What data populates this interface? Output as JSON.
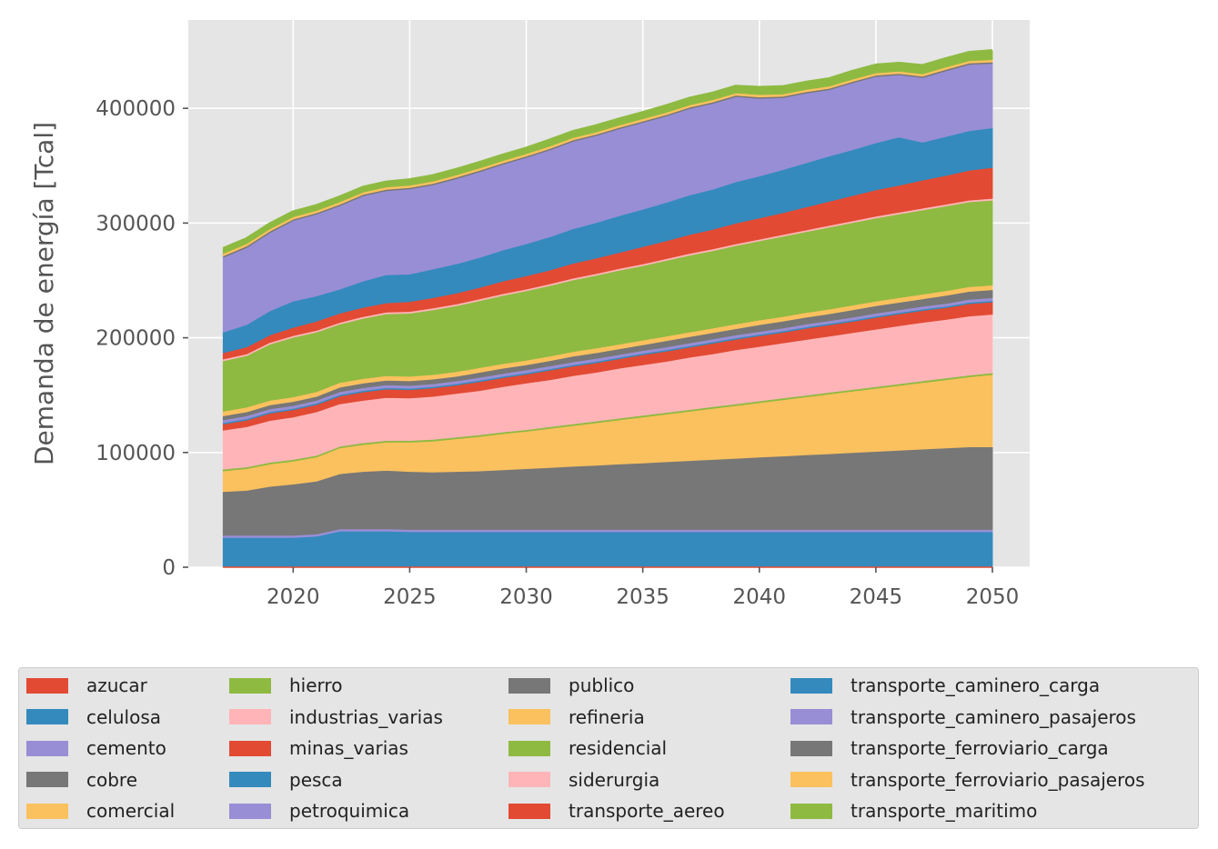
{
  "chart_data": {
    "type": "area",
    "stacked": true,
    "title": "",
    "xlabel": "",
    "ylabel": "Demanda de energía [Tcal]",
    "xlim": [
      2015.5,
      2051.6
    ],
    "ylim": [
      0,
      477000
    ],
    "xticks": [
      2020,
      2025,
      2030,
      2035,
      2040,
      2045,
      2050
    ],
    "yticks": [
      0,
      100000,
      200000,
      300000,
      400000
    ],
    "grid": true,
    "legend_position": "bottom",
    "x": [
      2017,
      2018,
      2019,
      2020,
      2021,
      2022,
      2023,
      2024,
      2025,
      2026,
      2027,
      2028,
      2029,
      2030,
      2031,
      2032,
      2033,
      2034,
      2035,
      2036,
      2037,
      2038,
      2039,
      2040,
      2041,
      2042,
      2043,
      2044,
      2045,
      2046,
      2047,
      2048,
      2049,
      2050
    ],
    "series": [
      {
        "name": "azucar",
        "color": "#E24A33",
        "values": [
          1000,
          1000,
          1000,
          1000,
          1000,
          1000,
          1000,
          1000,
          1000,
          1000,
          1000,
          1000,
          1000,
          1000,
          1000,
          1000,
          1000,
          1000,
          1000,
          1000,
          1000,
          1000,
          1000,
          1000,
          1000,
          1000,
          1000,
          1000,
          1000,
          1000,
          1000,
          1000,
          1000,
          1000
        ]
      },
      {
        "name": "celulosa",
        "color": "#348ABD",
        "values": [
          25000,
          25000,
          25000,
          25000,
          26000,
          30500,
          30500,
          30500,
          30000,
          30000,
          30000,
          30000,
          30000,
          30000,
          30000,
          30000,
          30000,
          30000,
          30000,
          30000,
          30000,
          30000,
          30000,
          30000,
          30000,
          30000,
          30000,
          30000,
          30000,
          30000,
          30000,
          30000,
          30000,
          30000
        ]
      },
      {
        "name": "cemento",
        "color": "#988ED5",
        "values": [
          2000,
          2000,
          2000,
          2000,
          2000,
          2000,
          2000,
          2000,
          2000,
          2000,
          2000,
          2000,
          2000,
          2000,
          2000,
          2000,
          2000,
          2000,
          2000,
          2000,
          2000,
          2000,
          2000,
          2000,
          2000,
          2000,
          2000,
          2000,
          2000,
          2000,
          2000,
          2000,
          2000,
          2000
        ]
      },
      {
        "name": "cobre",
        "color": "#777777",
        "values": [
          38000,
          39000,
          42500,
          44500,
          46000,
          48000,
          50000,
          51000,
          50500,
          50000,
          50500,
          51000,
          52000,
          53000,
          54000,
          55000,
          56000,
          57000,
          58000,
          59000,
          60000,
          61000,
          62000,
          63000,
          64000,
          65000,
          66000,
          67000,
          68000,
          69000,
          70000,
          71000,
          72000,
          72000
        ]
      },
      {
        "name": "comercial",
        "color": "#FBC15E",
        "values": [
          18000,
          19000,
          19500,
          20000,
          21000,
          22500,
          23500,
          24500,
          25500,
          27000,
          28500,
          30000,
          31500,
          32500,
          34000,
          35500,
          37000,
          38500,
          40000,
          41500,
          43000,
          44500,
          46000,
          47500,
          49000,
          50500,
          52000,
          53500,
          55000,
          56500,
          58000,
          59500,
          61000,
          63000
        ]
      },
      {
        "name": "hierro",
        "color": "#8EBA42",
        "values": [
          1500,
          1500,
          1500,
          1500,
          1500,
          1500,
          1500,
          1500,
          1500,
          1500,
          1500,
          1500,
          1500,
          1500,
          1500,
          1500,
          1500,
          1500,
          1500,
          1500,
          1500,
          1500,
          1500,
          1500,
          1500,
          1500,
          1500,
          1500,
          1500,
          1500,
          1500,
          1500,
          1500,
          1500
        ]
      },
      {
        "name": "industrias_varias",
        "color": "#FFB5B8",
        "values": [
          34000,
          35000,
          36500,
          37000,
          38000,
          37000,
          37000,
          37500,
          37000,
          37500,
          38000,
          38500,
          39500,
          40500,
          41000,
          42000,
          42500,
          43500,
          44000,
          44500,
          45500,
          46000,
          47000,
          47500,
          48000,
          48500,
          49000,
          49500,
          50000,
          50500,
          51000,
          51000,
          51500,
          51000
        ]
      },
      {
        "name": "minas_varias",
        "color": "#E24A33",
        "values": [
          6000,
          6500,
          7000,
          7000,
          7000,
          7500,
          8000,
          8000,
          8000,
          8000,
          8000,
          8500,
          8500,
          8500,
          9000,
          9000,
          9000,
          9000,
          9500,
          9500,
          9500,
          10000,
          10000,
          10000,
          10000,
          10500,
          10500,
          10500,
          11000,
          11000,
          11000,
          11000,
          11500,
          11500
        ]
      },
      {
        "name": "pesca",
        "color": "#348ABD",
        "values": [
          500,
          500,
          500,
          500,
          500,
          500,
          500,
          500,
          500,
          500,
          500,
          500,
          500,
          500,
          500,
          500,
          500,
          500,
          500,
          500,
          500,
          500,
          500,
          500,
          500,
          500,
          500,
          500,
          500,
          500,
          500,
          500,
          500,
          500
        ]
      },
      {
        "name": "petroquimica",
        "color": "#988ED5",
        "values": [
          2500,
          2500,
          2500,
          2500,
          2500,
          2500,
          2500,
          2500,
          2500,
          2500,
          2500,
          2500,
          2500,
          2500,
          2500,
          2500,
          2500,
          2500,
          2500,
          2500,
          2500,
          2500,
          2500,
          2500,
          2500,
          2500,
          2500,
          2500,
          2500,
          2500,
          2500,
          2500,
          2500,
          2500
        ]
      },
      {
        "name": "publico",
        "color": "#777777",
        "values": [
          3500,
          3500,
          3500,
          3500,
          3500,
          4000,
          4000,
          4000,
          4000,
          4000,
          4000,
          4500,
          4500,
          4500,
          4500,
          5000,
          5000,
          5000,
          5000,
          5500,
          5500,
          5500,
          5500,
          6000,
          6000,
          6000,
          6000,
          6500,
          6500,
          6500,
          6500,
          7000,
          7000,
          7000
        ]
      },
      {
        "name": "refineria",
        "color": "#FBC15E",
        "values": [
          4000,
          4000,
          4000,
          4000,
          4000,
          4000,
          4000,
          4000,
          4000,
          4000,
          4000,
          4000,
          4000,
          4000,
          4000,
          4000,
          4000,
          4000,
          4000,
          4000,
          4000,
          4000,
          4000,
          4000,
          4000,
          4000,
          4000,
          4000,
          4000,
          4000,
          4000,
          4000,
          4000,
          4000
        ]
      },
      {
        "name": "residencial",
        "color": "#8EBA42",
        "values": [
          44000,
          45000,
          49000,
          52000,
          52000,
          51000,
          52500,
          54000,
          55000,
          56500,
          57500,
          58500,
          59500,
          60500,
          61500,
          62500,
          63500,
          64500,
          65000,
          66000,
          67000,
          67500,
          68500,
          69000,
          70000,
          70500,
          71500,
          72000,
          72500,
          73000,
          73500,
          74000,
          74000,
          74000
        ]
      },
      {
        "name": "siderurgia",
        "color": "#FFB5B8",
        "values": [
          1500,
          1500,
          1500,
          1500,
          1500,
          1500,
          1500,
          1500,
          1500,
          1500,
          1500,
          1500,
          1500,
          1500,
          1500,
          1500,
          1500,
          1500,
          1500,
          1500,
          1500,
          1500,
          1500,
          1500,
          1500,
          1500,
          1500,
          1500,
          1500,
          1500,
          1500,
          1500,
          1500,
          1500
        ]
      },
      {
        "name": "transporte_aereo",
        "color": "#E24A33",
        "values": [
          5500,
          6000,
          6500,
          7000,
          8000,
          8000,
          8000,
          8000,
          8500,
          9000,
          9500,
          10000,
          11000,
          11500,
          12000,
          13000,
          13500,
          14000,
          15000,
          15500,
          16500,
          17000,
          18000,
          18500,
          19000,
          20000,
          21000,
          22000,
          23000,
          23500,
          24500,
          25000,
          26000,
          27000
        ]
      },
      {
        "name": "transporte_caminero_carga",
        "color": "#348ABD",
        "values": [
          18000,
          19500,
          21000,
          23000,
          22000,
          21000,
          23000,
          24500,
          24000,
          25000,
          25500,
          26000,
          27000,
          28000,
          29000,
          30000,
          31000,
          32000,
          32500,
          33500,
          34500,
          35000,
          36000,
          36500,
          37500,
          38500,
          39500,
          40000,
          41000,
          42000,
          33000,
          34000,
          34500,
          34500
        ]
      },
      {
        "name": "transporte_caminero_pasajeros",
        "color": "#988ED5",
        "values": [
          66000,
          68000,
          69000,
          71000,
          72000,
          73500,
          75000,
          74000,
          75000,
          74000,
          75000,
          75500,
          75500,
          76000,
          76500,
          77000,
          76500,
          76500,
          76500,
          76000,
          76000,
          75500,
          75000,
          68500,
          63500,
          61500,
          58500,
          59000,
          58500,
          55000,
          57000,
          58000,
          58500,
          57000
        ]
      },
      {
        "name": "transporte_ferroviario_carga",
        "color": "#777777",
        "values": [
          500,
          500,
          500,
          500,
          500,
          500,
          500,
          500,
          500,
          500,
          500,
          500,
          500,
          500,
          500,
          500,
          500,
          500,
          500,
          500,
          500,
          500,
          500,
          500,
          500,
          500,
          500,
          500,
          500,
          500,
          500,
          500,
          500,
          500
        ]
      },
      {
        "name": "transporte_ferroviario_pasajeros",
        "color": "#FBC15E",
        "values": [
          2000,
          2000,
          2000,
          2000,
          2000,
          2000,
          2000,
          2000,
          2000,
          2000,
          2000,
          2000,
          2000,
          2000,
          2000,
          2000,
          2000,
          2000,
          2000,
          2000,
          2000,
          2000,
          2000,
          2000,
          2000,
          2000,
          2000,
          2000,
          2000,
          2000,
          2000,
          2000,
          2000,
          2000
        ]
      },
      {
        "name": "transporte_maritimo",
        "color": "#8EBA42",
        "values": [
          4000,
          4000,
          4000,
          4000,
          4000,
          4000,
          4000,
          4000,
          4500,
          4500,
          4500,
          4500,
          4500,
          4500,
          5000,
          5000,
          5000,
          5000,
          5000,
          5500,
          5500,
          5500,
          5500,
          6000,
          6000,
          6000,
          6000,
          6500,
          6500,
          6500,
          7000,
          7000,
          7000,
          7500
        ]
      }
    ]
  }
}
